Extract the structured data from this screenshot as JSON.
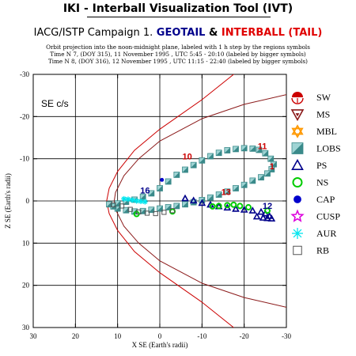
{
  "header": {
    "title": "IKI - Interball Visualization Tool (IVT)",
    "campaign": "IACG/ISTP Campaign 1.",
    "sat1": "GEOTAIL",
    "amp": "&",
    "sat2": "INTERBALL (TAIL)",
    "line1": "Orbit projection into the noon-midnight plane, labeled with 1 h step by the regions symbols",
    "line2": "Time N 7, (DOY 315), 11 November 1995 ,  UTC 5:45 - 20:10 (labeled by bigger symbols)",
    "line3": "Time N 8, (DOY 316), 12 November 1995 ,  UTC 11:15 - 22:40 (labeled by bigger symbols)"
  },
  "chart_data": {
    "type": "scatter",
    "coord_system_label": "SE c/s",
    "xlabel": "X SE (Earth's radii)",
    "ylabel": "Z SE (Earth's radii)",
    "xlim": [
      30,
      -30
    ],
    "ylim": [
      -30,
      30
    ],
    "xticks": [
      30,
      20,
      10,
      0,
      -10,
      -20,
      -30
    ],
    "xtick_labels": [
      "30",
      "20",
      "10",
      "0",
      "-10",
      "-20",
      "-30"
    ],
    "yticks": [
      -30,
      -20,
      -10,
      0,
      10,
      20,
      30
    ],
    "ytick_labels": [
      "-30",
      "-20",
      "-10",
      "0",
      "10",
      "20",
      "30"
    ],
    "grid": true,
    "boundaries": [
      {
        "name": "bow-shock",
        "color": "#cc0000",
        "points": [
          [
            -30,
            -40
          ],
          [
            -20,
            -32
          ],
          [
            -10,
            -24
          ],
          [
            0,
            -17
          ],
          [
            6,
            -12
          ],
          [
            10,
            -7
          ],
          [
            12,
            -3
          ],
          [
            12.6,
            0
          ],
          [
            12,
            3
          ],
          [
            10,
            7
          ],
          [
            6,
            12
          ],
          [
            0,
            17
          ],
          [
            -10,
            24
          ],
          [
            -20,
            32
          ],
          [
            -30,
            40
          ]
        ]
      },
      {
        "name": "magnetopause",
        "color": "#8b1a1a",
        "points": [
          [
            -30,
            -25.2
          ],
          [
            -20,
            -22.9
          ],
          [
            -10,
            -19.5
          ],
          [
            0,
            -14.2
          ],
          [
            5,
            -10
          ],
          [
            8.5,
            -6
          ],
          [
            10.5,
            -2
          ],
          [
            10.8,
            0
          ],
          [
            10.5,
            2
          ],
          [
            8.5,
            6
          ],
          [
            5,
            10
          ],
          [
            0,
            14.2
          ],
          [
            -10,
            19.5
          ],
          [
            -20,
            22.9
          ],
          [
            -30,
            25.2
          ]
        ]
      }
    ],
    "hour_labels": [
      {
        "text": "10",
        "color": "#cc0000",
        "x": -6.5,
        "z": -9.8
      },
      {
        "text": "11",
        "color": "#cc0000",
        "x": -24.3,
        "z": -12.3
      },
      {
        "text": "1",
        "color": "#cc0000",
        "x": -26.6,
        "z": -7.5
      },
      {
        "text": "13",
        "color": "#cc0000",
        "x": -15.7,
        "z": -1.4
      },
      {
        "text": "16",
        "color": "#00008b",
        "x": 3.5,
        "z": -1.8
      },
      {
        "text": "12",
        "color": "#00008b",
        "x": -25.5,
        "z": 1.9
      }
    ],
    "series": [
      {
        "name": "SW",
        "color": "#cc0000",
        "symbol": "half-circle",
        "points": []
      },
      {
        "name": "MS",
        "color": "#8b1a1a",
        "symbol": "triangle-down",
        "points": []
      },
      {
        "name": "MBL",
        "color": "#ff9900",
        "symbol": "star6",
        "points": []
      },
      {
        "name": "LOBS",
        "color": "#3a8a8a",
        "symbol": "square-shaded",
        "points": [
          [
            -8,
            -8.5
          ],
          [
            -10,
            -9.6
          ],
          [
            -12,
            -10.6
          ],
          [
            -14,
            -11.4
          ],
          [
            -16,
            -12
          ],
          [
            -18,
            -12.3
          ],
          [
            -20,
            -12.5
          ],
          [
            -22,
            -12.4
          ],
          [
            -23.5,
            -12.1
          ],
          [
            -25,
            -11.3
          ],
          [
            -26.3,
            -10
          ],
          [
            -27,
            -8.7
          ],
          [
            -26.5,
            -7.5
          ],
          [
            -25.5,
            -6.5
          ],
          [
            -24,
            -5.6
          ],
          [
            -22,
            -4.8
          ],
          [
            -20,
            -3.8
          ],
          [
            -18,
            -3.0
          ],
          [
            -16,
            -2.2
          ],
          [
            -14,
            -1.5
          ],
          [
            -12,
            -0.8
          ],
          [
            -10,
            -0.2
          ],
          [
            -8,
            0.3
          ],
          [
            -6,
            0.8
          ],
          [
            -4,
            1.2
          ],
          [
            -2,
            1.5
          ],
          [
            0,
            1.8
          ],
          [
            2,
            2.1
          ],
          [
            4,
            2.4
          ],
          [
            6,
            2.5
          ],
          [
            8,
            2.2
          ],
          [
            10,
            1.8
          ],
          [
            11,
            1.3
          ],
          [
            -6,
            -7.4
          ],
          [
            -4,
            -6.2
          ],
          [
            -2,
            -4.6
          ],
          [
            0,
            -3.0
          ],
          [
            2,
            -1.8
          ],
          [
            4,
            -1.0
          ],
          [
            6,
            -0.3
          ],
          [
            8,
            0.2
          ],
          [
            10,
            0.6
          ],
          [
            12,
            0.8
          ]
        ]
      },
      {
        "name": "PS",
        "color": "#00008b",
        "symbol": "triangle-up",
        "points": [
          [
            -6,
            -0.6
          ],
          [
            -8,
            -0.1
          ],
          [
            -10,
            0.5
          ],
          [
            -12,
            0.9
          ],
          [
            -14,
            1.3
          ],
          [
            -16,
            1.6
          ],
          [
            -18,
            1.9
          ],
          [
            -20,
            2.1
          ],
          [
            -22,
            2.3
          ],
          [
            -24,
            2.6
          ],
          [
            -25,
            3.0
          ],
          [
            -26,
            3.6
          ],
          [
            -24.5,
            4.0
          ],
          [
            -23,
            3.7
          ],
          [
            -25.5,
            4.1
          ],
          [
            -26.5,
            4.2
          ]
        ]
      },
      {
        "name": "NS",
        "color": "#00cc00",
        "symbol": "circle",
        "points": [
          [
            5.5,
            3.1
          ],
          [
            -3,
            2.5
          ],
          [
            -12.5,
            1.3
          ],
          [
            -14,
            1.2
          ],
          [
            -16,
            1.0
          ],
          [
            -17.5,
            0.9
          ],
          [
            -19,
            1.2
          ],
          [
            -21,
            1.5
          ],
          [
            -25.5,
            2.3
          ]
        ]
      },
      {
        "name": "CAP",
        "color": "#0000cc",
        "symbol": "pentagon",
        "points": [
          [
            -0.5,
            -5.0
          ]
        ]
      },
      {
        "name": "CUSP",
        "color": "#dd00dd",
        "symbol": "star5",
        "points": []
      },
      {
        "name": "AUR",
        "color": "#00e5ee",
        "symbol": "asterisk",
        "points": [
          [
            7.5,
            -0.4
          ],
          [
            6.5,
            -0.2
          ],
          [
            5.5,
            0.0
          ],
          [
            4.5,
            0.1
          ],
          [
            3.5,
            0.2
          ],
          [
            8.5,
            -0.5
          ]
        ]
      },
      {
        "name": "RB",
        "color": "#555555",
        "symbol": "square-open",
        "points": [
          [
            11,
            0.9
          ],
          [
            9,
            1.2
          ],
          [
            7,
            2.0
          ],
          [
            5,
            2.6
          ],
          [
            3,
            2.9
          ],
          [
            1,
            3.0
          ],
          [
            -1,
            2.7
          ],
          [
            -3,
            2.3
          ]
        ]
      }
    ]
  }
}
